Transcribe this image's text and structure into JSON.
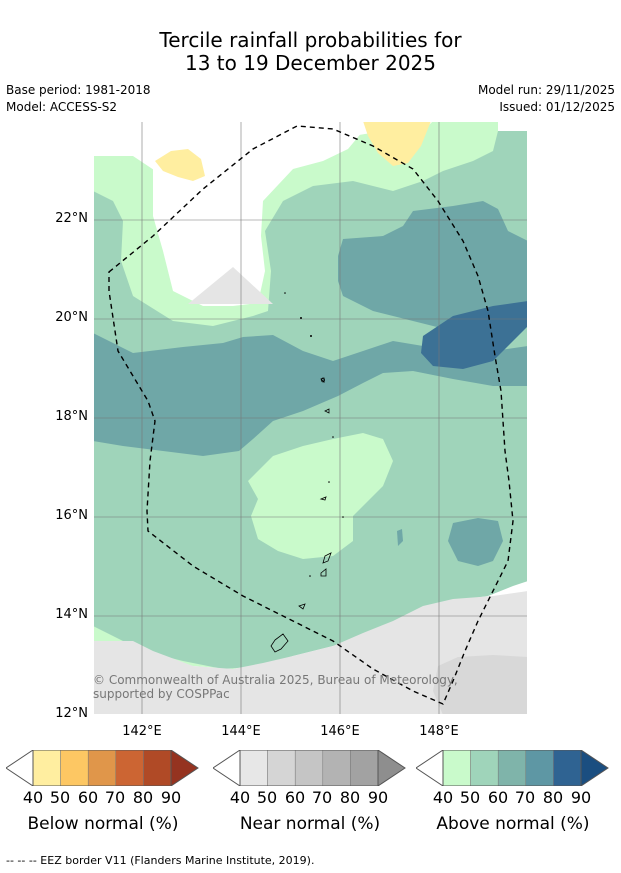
{
  "title": {
    "line1": "Tercile rainfall probabilities for",
    "line2": "13 to 19 December 2025"
  },
  "meta": {
    "base_period": "Base period: 1981-2018",
    "model": "Model: ACCESS-S2",
    "model_run": "Model run: 29/11/2025",
    "issued": "Issued: 01/12/2025"
  },
  "map": {
    "lat_labels": [
      "22°N",
      "20°N",
      "18°N",
      "16°N",
      "14°N",
      "12°N"
    ],
    "lon_labels": [
      "142°E",
      "144°E",
      "146°E",
      "148°E"
    ],
    "copyright": "© Commonwealth of Australia 2025, Bureau of Meteorology, supported by COSPPac"
  },
  "legend": {
    "ticks": [
      "40",
      "50",
      "60",
      "70",
      "80",
      "90"
    ],
    "below": {
      "label": "Below normal (%)",
      "colors": [
        "#ffeea0",
        "#fdc763",
        "#e0964a",
        "#cc6533",
        "#b04a26",
        "#953320"
      ]
    },
    "near": {
      "label": "Near normal (%)",
      "colors": [
        "#e7e7e7",
        "#d5d5d5",
        "#c5c5c5",
        "#b3b3b3",
        "#a2a2a2",
        "#8e8e8e"
      ]
    },
    "above": {
      "label": "Above normal (%)",
      "colors": [
        "#c9facb",
        "#9fd4ba",
        "#7fb4aa",
        "#5e97a4",
        "#2f6392",
        "#1b4e80"
      ]
    }
  },
  "footer": "--  --  -- EEZ border V11 (Flanders Marine Institute, 2019)."
}
